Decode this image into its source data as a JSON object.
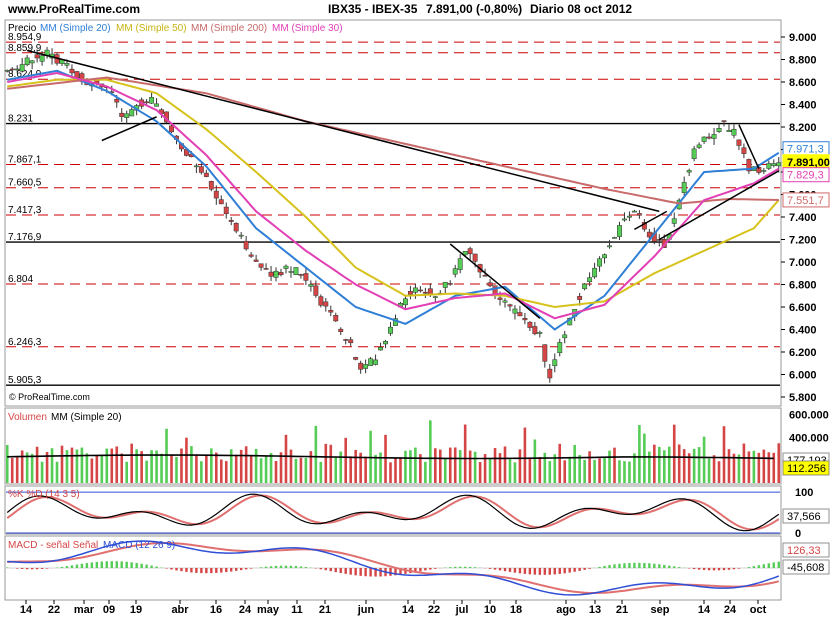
{
  "header": {
    "site": "www.ProRealTime.com",
    "instrument": "IBX35 - IBEX-35",
    "quote": "7.891,00 (-0,80%)",
    "period": "Diario  08 oct 2012"
  },
  "price_panel": {
    "legend": {
      "price": "Precio",
      "mm20": "MM (Simple 20)",
      "mm50": "MM (Simple 50)",
      "mm200": "MM (Simple 200)",
      "mm30": "MM (Simple 30)"
    },
    "watermark": "© ProRealTime.com",
    "level_labels": [
      "8.954,9",
      "8.859,9",
      "8.624,9",
      "8.231",
      "7.867,1",
      "7.660,5",
      "7.417,3",
      "7.176,9",
      "6.804",
      "6.246,3",
      "5.905,3"
    ],
    "right_ticks": [
      "9.000",
      "8.800",
      "8.600",
      "8.400",
      "8.200",
      "8.000",
      "7.800",
      "7.600",
      "7.400",
      "7.200",
      "7.000",
      "6.800",
      "6.600",
      "6.400",
      "6.200",
      "6.000",
      "5.800"
    ],
    "badges": [
      {
        "text": "7.971,3",
        "color": "#2f7fd6",
        "kind": "mm20"
      },
      {
        "text": "7.891,00",
        "color": "#ffff00",
        "kind": "price"
      },
      {
        "text": "7.829,3",
        "color": "#e23fb5",
        "kind": "mm30"
      },
      {
        "text": "7.551,7",
        "color": "#d06a6a",
        "kind": "mm200"
      }
    ]
  },
  "volume_panel": {
    "legend_volume": "Volumen",
    "legend_mm": "MM (Simple 20)",
    "right_ticks": [
      "600.000",
      "400.000"
    ],
    "badges": [
      {
        "text": "177.193",
        "color": "#ffffff"
      },
      {
        "text": "112.256",
        "color": "#ffff00"
      }
    ]
  },
  "stoch_panel": {
    "legend": "%K %D (14 3 5)",
    "right_ticks": [
      "100",
      "0"
    ],
    "badges": [
      {
        "text": "37,566",
        "color": "#ffffff"
      }
    ]
  },
  "macd_panel": {
    "legend_a": "MACD -",
    "legend_b": "señal Señal",
    "legend_c": "MACD (12 26 9)",
    "badges": [
      {
        "text": "126,33",
        "color": "#ffffff"
      },
      {
        "text": "-45,608",
        "color": "#ffffff"
      }
    ]
  },
  "x_axis": {
    "ticks": [
      "14",
      "22",
      "mar",
      "09",
      "19",
      "abr",
      "16",
      "24",
      "may",
      "11",
      "21",
      "jun",
      "14",
      "22",
      "jul",
      "10",
      "18",
      "ago",
      "13",
      "21",
      "sep",
      "14",
      "24",
      "oct"
    ]
  },
  "colors": {
    "up": "#55cc55",
    "down": "#d64545",
    "mm20": "#2f7fd6",
    "mm50": "#d6c21a",
    "mm200": "#c86a6a",
    "mm30": "#e23fb5",
    "resistance": "#cc0000",
    "grid": "#cccccc"
  },
  "chart_data": {
    "type": "candlestick",
    "title": "IBX35 - IBEX-35  7.891,00 (-0,80%)  Diario 08 oct 2012",
    "ylim": [
      5800,
      9100
    ],
    "y_ticks": [
      9000,
      8800,
      8600,
      8400,
      8200,
      8000,
      7800,
      7600,
      7400,
      7200,
      7000,
      6800,
      6600,
      6400,
      6200,
      6000,
      5800
    ],
    "horizontal_levels": [
      8954.9,
      8859.9,
      8624.9,
      8231,
      7867.1,
      7660.5,
      7417.3,
      7176.9,
      6804,
      6246.3,
      5905.3
    ],
    "close_path": [
      [
        0,
        8700
      ],
      [
        8,
        8780
      ],
      [
        16,
        8860
      ],
      [
        24,
        8740
      ],
      [
        32,
        8600
      ],
      [
        40,
        8560
      ],
      [
        46,
        8300
      ],
      [
        52,
        8380
      ],
      [
        58,
        8460
      ],
      [
        64,
        8250
      ],
      [
        70,
        8000
      ],
      [
        78,
        7820
      ],
      [
        86,
        7530
      ],
      [
        92,
        7300
      ],
      [
        98,
        7050
      ],
      [
        106,
        6880
      ],
      [
        114,
        6950
      ],
      [
        120,
        6850
      ],
      [
        126,
        6650
      ],
      [
        132,
        6480
      ],
      [
        138,
        6250
      ],
      [
        142,
        6020
      ],
      [
        148,
        6150
      ],
      [
        154,
        6420
      ],
      [
        160,
        6700
      ],
      [
        166,
        6760
      ],
      [
        172,
        6690
      ],
      [
        178,
        6840
      ],
      [
        184,
        7120
      ],
      [
        190,
        6930
      ],
      [
        196,
        6700
      ],
      [
        202,
        6600
      ],
      [
        208,
        6480
      ],
      [
        214,
        6350
      ],
      [
        218,
        5950
      ],
      [
        222,
        6280
      ],
      [
        228,
        6600
      ],
      [
        234,
        6880
      ],
      [
        240,
        7100
      ],
      [
        246,
        7300
      ],
      [
        252,
        7480
      ],
      [
        258,
        7250
      ],
      [
        264,
        7150
      ],
      [
        268,
        7380
      ],
      [
        272,
        7700
      ],
      [
        276,
        7980
      ],
      [
        280,
        8100
      ],
      [
        284,
        8150
      ],
      [
        288,
        8230
      ],
      [
        292,
        8150
      ],
      [
        296,
        7950
      ],
      [
        298,
        7820
      ],
      [
        302,
        7830
      ],
      [
        306,
        7860
      ],
      [
        310,
        7891
      ]
    ],
    "series": [
      {
        "name": "MM (Simple 20)",
        "color": "#2f7fd6",
        "points": [
          [
            0,
            8620
          ],
          [
            20,
            8700
          ],
          [
            40,
            8520
          ],
          [
            60,
            8250
          ],
          [
            80,
            7850
          ],
          [
            100,
            7300
          ],
          [
            120,
            6950
          ],
          [
            140,
            6600
          ],
          [
            160,
            6450
          ],
          [
            180,
            6700
          ],
          [
            200,
            6780
          ],
          [
            220,
            6400
          ],
          [
            240,
            6700
          ],
          [
            260,
            7250
          ],
          [
            280,
            7800
          ],
          [
            300,
            7830
          ],
          [
            310,
            7971
          ]
        ]
      },
      {
        "name": "MM (Simple 50)",
        "color": "#d6c21a",
        "points": [
          [
            0,
            8560
          ],
          [
            20,
            8620
          ],
          [
            40,
            8620
          ],
          [
            60,
            8500
          ],
          [
            80,
            8180
          ],
          [
            100,
            7800
          ],
          [
            120,
            7400
          ],
          [
            140,
            6950
          ],
          [
            160,
            6700
          ],
          [
            180,
            6720
          ],
          [
            200,
            6700
          ],
          [
            220,
            6600
          ],
          [
            240,
            6650
          ],
          [
            260,
            6900
          ],
          [
            280,
            7100
          ],
          [
            300,
            7300
          ],
          [
            310,
            7551
          ]
        ]
      },
      {
        "name": "MM (Simple 200)",
        "color": "#c86a6a",
        "points": [
          [
            0,
            8540
          ],
          [
            40,
            8640
          ],
          [
            80,
            8500
          ],
          [
            120,
            8250
          ],
          [
            160,
            8050
          ],
          [
            200,
            7850
          ],
          [
            240,
            7650
          ],
          [
            270,
            7520
          ],
          [
            290,
            7560
          ],
          [
            310,
            7551
          ]
        ]
      },
      {
        "name": "MM (Simple 30)",
        "color": "#e23fb5",
        "points": [
          [
            0,
            8600
          ],
          [
            20,
            8680
          ],
          [
            40,
            8560
          ],
          [
            60,
            8350
          ],
          [
            80,
            7950
          ],
          [
            100,
            7450
          ],
          [
            120,
            7100
          ],
          [
            140,
            6800
          ],
          [
            160,
            6580
          ],
          [
            180,
            6680
          ],
          [
            200,
            6720
          ],
          [
            220,
            6500
          ],
          [
            240,
            6620
          ],
          [
            260,
            7050
          ],
          [
            280,
            7550
          ],
          [
            300,
            7700
          ],
          [
            310,
            7829
          ]
        ]
      }
    ],
    "trendlines": [
      {
        "x1": 8,
        "y1": 8880,
        "x2": 262,
        "y2": 7450
      },
      {
        "x1": 38,
        "y1": 8080,
        "x2": 60,
        "y2": 8290
      },
      {
        "x1": 178,
        "y1": 7160,
        "x2": 214,
        "y2": 6500
      },
      {
        "x1": 252,
        "y1": 7290,
        "x2": 265,
        "y2": 7450
      },
      {
        "x1": 294,
        "y1": 8220,
        "x2": 302,
        "y2": 7830
      },
      {
        "x1": 262,
        "y1": 7200,
        "x2": 310,
        "y2": 7810
      }
    ],
    "volume": {
      "ylim": [
        0,
        640000
      ],
      "mm20": 112256,
      "last": 177193
    },
    "stochastic": {
      "ylim": [
        0,
        110
      ],
      "last": 37.566
    },
    "macd": {
      "macd_last": 126.33,
      "signal_last": -45.608
    },
    "x_ticks": [
      "14",
      "22",
      "mar",
      "09",
      "19",
      "abr",
      "16",
      "24",
      "may",
      "11",
      "21",
      "jun",
      "14",
      "22",
      "jul",
      "10",
      "18",
      "ago",
      "13",
      "21",
      "sep",
      "14",
      "24",
      "oct"
    ]
  }
}
